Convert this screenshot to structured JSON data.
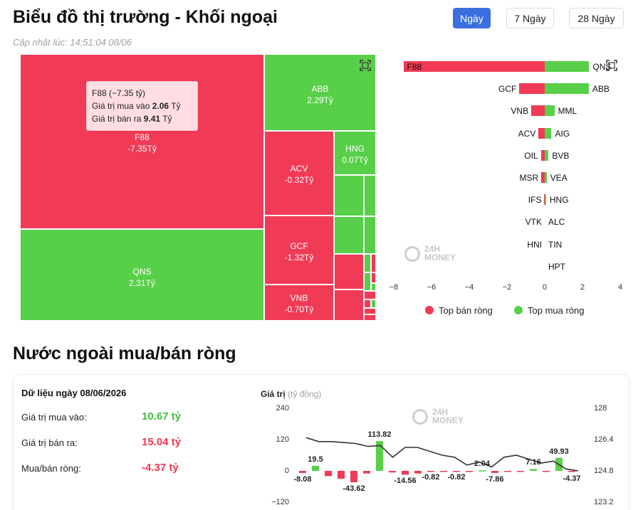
{
  "header": {
    "title": "Biểu đồ thị trường - Khối ngoại",
    "updated": "Cập nhật lúc: 14:51:04 08/06",
    "ranges": [
      "Ngày",
      "7 Ngày",
      "28 Ngày"
    ],
    "active_range": "Ngày"
  },
  "treemap": {
    "cells": [
      {
        "code": "F88",
        "value": "-7.35Tỷ",
        "color": "red"
      },
      {
        "code": "QNS",
        "value": "2.31Tỷ",
        "color": "green"
      },
      {
        "code": "ABB",
        "value": "2.29Tỷ",
        "color": "green"
      },
      {
        "code": "ACV",
        "value": "-0.32Tỷ",
        "color": "red"
      },
      {
        "code": "HNG",
        "value": "0.07Tỷ",
        "color": "green"
      },
      {
        "code": "GCF",
        "value": "-1.32Tỷ",
        "color": "red"
      },
      {
        "code": "VNB",
        "value": "-0.70Tỷ",
        "color": "red"
      }
    ],
    "tooltip": {
      "head": "F88 (−7.35 tỷ)",
      "buy_label": "Giá trị mua vào",
      "buy_value": "2.06",
      "sell_label": "Giá trị bán ra",
      "sell_value": "9.41",
      "unit": "Tỷ"
    }
  },
  "top_chart": {
    "sell": [
      {
        "code": "F88",
        "value": -7.35
      },
      {
        "code": "GCF",
        "value": -1.32
      },
      {
        "code": "VNB",
        "value": -0.7
      },
      {
        "code": "ACV",
        "value": -0.32
      },
      {
        "code": "OIL",
        "value": -0.2
      },
      {
        "code": "MSR",
        "value": -0.18
      },
      {
        "code": "IFS",
        "value": -0.02
      },
      {
        "code": "VTK",
        "value": 0
      },
      {
        "code": "HNI",
        "value": 0
      },
      {
        "code": "",
        "value": 0
      }
    ],
    "buy": [
      {
        "code": "QNS",
        "value": 2.31
      },
      {
        "code": "ABB",
        "value": 2.29
      },
      {
        "code": "MML",
        "value": 0.5
      },
      {
        "code": "AIG",
        "value": 0.35
      },
      {
        "code": "BVB",
        "value": 0.2
      },
      {
        "code": "VEA",
        "value": 0.1
      },
      {
        "code": "HNG",
        "value": 0.07
      },
      {
        "code": "ALC",
        "value": 0
      },
      {
        "code": "TIN",
        "value": 0
      },
      {
        "code": "HPT",
        "value": 0
      }
    ],
    "x_ticks": [
      "−8",
      "−6",
      "−4",
      "−2",
      "0",
      "2",
      "4"
    ],
    "x_min": -8,
    "x_max": 4,
    "legend_sell": "Top bán ròng",
    "legend_buy": "Top mua ròng",
    "sell_color": "#f13a56",
    "buy_color": "#58cf49"
  },
  "watermark": {
    "line1": "24H",
    "line2": "MONEY"
  },
  "net_section": {
    "title": "Nước ngoài mua/bán ròng",
    "date_label": "Dữ liệu ngày 08/06/2026",
    "buy_label": "Giá trị mua vào:",
    "buy_value": "10.67 tỷ",
    "sell_label": "Giá trị bán ra:",
    "sell_value": "15.04 tỷ",
    "net_label": "Mua/bán ròng:",
    "net_value": "-4.37 tỷ"
  },
  "chart_data": {
    "type": "bar",
    "title": "Giá trị",
    "unit_label": "(tỷ đồng)",
    "left_ticks": [
      "240",
      "120",
      "0",
      "−120"
    ],
    "right_ticks": [
      "128",
      "126.4",
      "124.8",
      "123.2"
    ],
    "ylim": [
      -120,
      240
    ],
    "y2lim": [
      123.2,
      128
    ],
    "bars": [
      -8.08,
      19.5,
      -20,
      -30,
      -43.62,
      -10,
      113.82,
      -6,
      -14.56,
      -10,
      -0.82,
      -1,
      -0.82,
      -1.5,
      2.04,
      -7.86,
      -1,
      -1,
      7.16,
      -1,
      49.93,
      -4.37
    ],
    "bar_labels": [
      {
        "index": 0,
        "text": "-8.08"
      },
      {
        "index": 1,
        "text": "19.5"
      },
      {
        "index": 4,
        "text": "-43.62"
      },
      {
        "index": 6,
        "text": "113.82"
      },
      {
        "index": 8,
        "text": "-14.56"
      },
      {
        "index": 10,
        "text": "-0.82"
      },
      {
        "index": 12,
        "text": "-0.82"
      },
      {
        "index": 14,
        "text": "2:04"
      },
      {
        "index": 15,
        "text": "-7.86"
      },
      {
        "index": 18,
        "text": "7.16"
      },
      {
        "index": 20,
        "text": "49.93"
      },
      {
        "index": 21,
        "text": "-4.37"
      }
    ],
    "line": [
      126.5,
      126.3,
      126.3,
      126.25,
      126.2,
      126.05,
      126.1,
      125.5,
      126.0,
      126.0,
      125.8,
      125.6,
      125.5,
      125.1,
      125.25,
      125.0,
      125.5,
      125.6,
      125.4,
      125.2,
      125.3,
      124.9,
      124.8
    ],
    "pos_color": "#58cf49",
    "neg_color": "#f13a56",
    "line_color": "#333333"
  }
}
